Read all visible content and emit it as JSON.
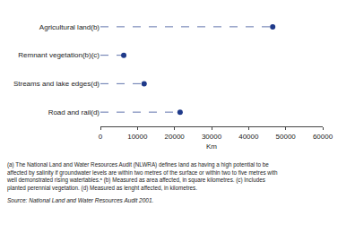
{
  "chart_data": {
    "type": "dot",
    "orientation": "horizontal",
    "categories": [
      "Agricultural land(b)",
      "Remnant vegetation(b)(c)",
      "Streams and lake edges(d)",
      "Road and rail(d)"
    ],
    "values": [
      46500,
      6300,
      11800,
      21500
    ],
    "color": "#1f3a8a",
    "line_style": "dashed",
    "x_label": "Km",
    "xlim": [
      0,
      60000
    ],
    "xticks": [
      0,
      10000,
      20000,
      30000,
      40000,
      50000,
      60000
    ],
    "grid": false,
    "notes": [
      "(a) The National Land and Water Resources Audit (NLWRA) defines land as having a high potential to be",
      "affected by salinity if groundwater levels are within two metres of the surface or within two to five metres with",
      "well demonstrated rising watertables.ᵃ (b) Measured as area affected, in square kilometres. (c) Includes",
      "planted perennial vegetation. (d) Measured as lenght affected, in kilometres."
    ],
    "source": "Source: National Land and Water Resources Audit 2001."
  }
}
